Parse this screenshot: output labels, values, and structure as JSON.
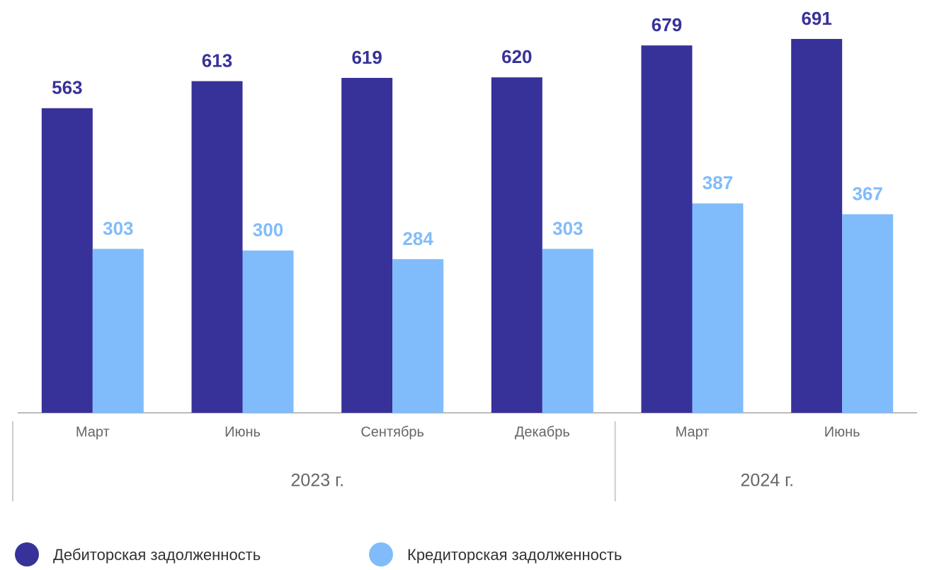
{
  "chart_data": {
    "type": "bar",
    "groups": [
      {
        "label": "2023 г.",
        "categories": [
          "Март",
          "Июнь",
          "Сентябрь",
          "Декабрь"
        ]
      },
      {
        "label": "2024 г.",
        "categories": [
          "Март",
          "Июнь"
        ]
      }
    ],
    "series": [
      {
        "name": "Дебиторская задолженность",
        "color": "#37319a",
        "values": [
          563,
          613,
          619,
          620,
          679,
          691
        ]
      },
      {
        "name": "Кредиторская задолженность",
        "color": "#80bcfb",
        "values": [
          303,
          300,
          284,
          303,
          387,
          367
        ]
      }
    ]
  }
}
